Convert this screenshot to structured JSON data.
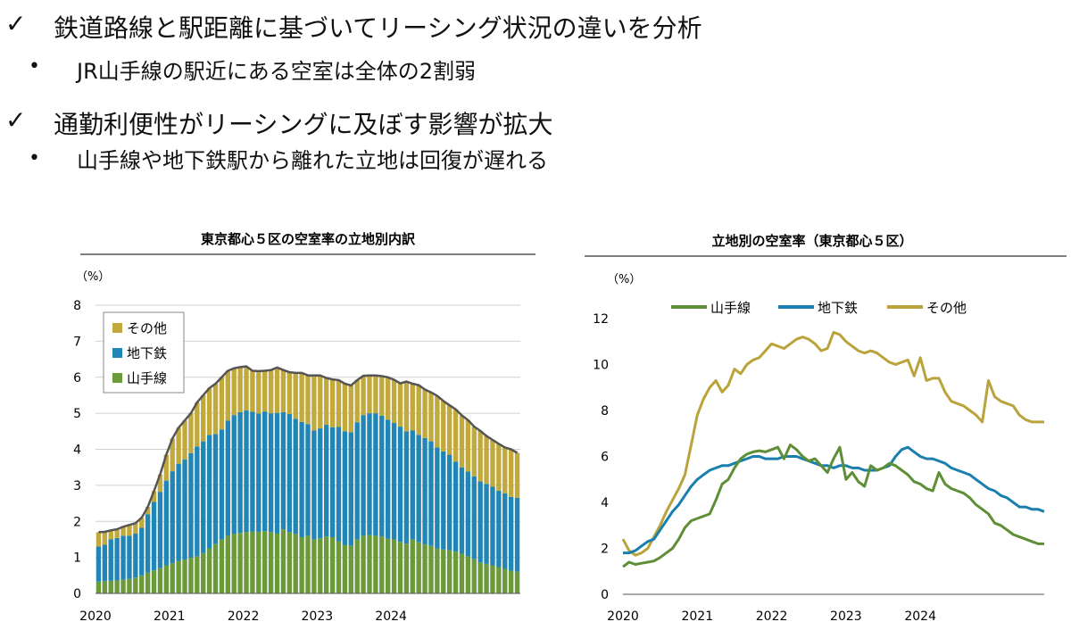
{
  "bullets": [
    {
      "mark": "✓",
      "text": "鉄道路線と駅距離に基づいてリーシング状況の違いを分析"
    },
    {
      "mark": "•",
      "text": "JR山手線の駅近にある空室は全体の2割弱"
    },
    {
      "mark": "✓",
      "text": "通勤利便性がリーシングに及ぼす影響が拡大"
    },
    {
      "mark": "•",
      "text": "山手線や地下鉄駅から離れた立地は回復が遅れる"
    }
  ],
  "chart_data": [
    {
      "type": "bar",
      "stacked": true,
      "title": "東京都心５区の空室率の立地別内訳",
      "ylabel": "（%）",
      "ylim": [
        0,
        8
      ],
      "yticks": [
        0,
        1,
        2,
        3,
        4,
        5,
        6,
        7,
        8
      ],
      "xticks": [
        "2020",
        "2021",
        "2022",
        "2023",
        "2024"
      ],
      "colors": {
        "yamanote": "#6a9a3a",
        "subway": "#2186b5",
        "other": "#c1a93c",
        "total": "#555555"
      },
      "series": [
        {
          "name": "山手線",
          "values": [
            0.33,
            0.34,
            0.35,
            0.36,
            0.38,
            0.4,
            0.44,
            0.5,
            0.58,
            0.64,
            0.7,
            0.78,
            0.84,
            0.9,
            0.94,
            0.99,
            1.03,
            1.12,
            1.25,
            1.37,
            1.5,
            1.6,
            1.65,
            1.68,
            1.7,
            1.72,
            1.71,
            1.73,
            1.7,
            1.66,
            1.78,
            1.7,
            1.65,
            1.56,
            1.6,
            1.5,
            1.53,
            1.58,
            1.56,
            1.44,
            1.35,
            1.32,
            1.5,
            1.6,
            1.62,
            1.6,
            1.58,
            1.52,
            1.5,
            1.43,
            1.38,
            1.5,
            1.42,
            1.36,
            1.32,
            1.25,
            1.22,
            1.2,
            1.16,
            1.1,
            1.03,
            0.95,
            0.86,
            0.82,
            0.78,
            0.73,
            0.68,
            0.63,
            0.6
          ]
        },
        {
          "name": "地下鉄",
          "values": [
            0.97,
            1.01,
            1.15,
            1.18,
            1.22,
            1.2,
            1.22,
            1.32,
            1.62,
            1.9,
            2.12,
            2.35,
            2.55,
            2.7,
            2.78,
            2.9,
            3.05,
            3.1,
            3.15,
            3.05,
            3.05,
            3.2,
            3.3,
            3.35,
            3.38,
            3.32,
            3.28,
            3.32,
            3.3,
            3.35,
            3.25,
            3.28,
            3.2,
            3.2,
            3.1,
            3.02,
            3.05,
            3.1,
            3.05,
            3.18,
            3.15,
            3.15,
            3.25,
            3.35,
            3.38,
            3.4,
            3.35,
            3.3,
            3.23,
            3.2,
            3.12,
            3.02,
            2.98,
            2.95,
            2.9,
            2.8,
            2.72,
            2.65,
            2.5,
            2.4,
            2.35,
            2.3,
            2.25,
            2.22,
            2.18,
            2.12,
            2.1,
            2.05,
            2.05
          ]
        },
        {
          "name": "その他",
          "values": [
            0.4,
            0.36,
            0.25,
            0.24,
            0.25,
            0.3,
            0.29,
            0.28,
            0.2,
            0.3,
            0.48,
            0.72,
            0.91,
            1.0,
            1.08,
            1.11,
            1.22,
            1.28,
            1.3,
            1.4,
            1.45,
            1.38,
            1.3,
            1.25,
            1.22,
            1.14,
            1.18,
            1.13,
            1.2,
            1.26,
            1.17,
            1.16,
            1.27,
            1.36,
            1.35,
            1.53,
            1.47,
            1.3,
            1.33,
            1.3,
            1.32,
            1.3,
            1.17,
            1.09,
            1.05,
            1.05,
            1.1,
            1.18,
            1.2,
            1.2,
            1.38,
            1.3,
            1.38,
            1.35,
            1.36,
            1.43,
            1.4,
            1.37,
            1.45,
            1.44,
            1.43,
            1.38,
            1.4,
            1.33,
            1.3,
            1.3,
            1.27,
            1.32,
            1.25
          ]
        }
      ],
      "legend": [
        "その他",
        "地下鉄",
        "山手線"
      ]
    },
    {
      "type": "line",
      "title": "立地別の空室率（東京都心５区）",
      "ylabel": "（%）",
      "ylim": [
        0,
        12
      ],
      "yticks": [
        0,
        2,
        4,
        6,
        8,
        10,
        12
      ],
      "xticks": [
        "2020",
        "2021",
        "2022",
        "2023",
        "2024"
      ],
      "colors": {
        "yamanote": "#5e8e35",
        "subway": "#1a7fae",
        "other": "#b9a33a"
      },
      "series": [
        {
          "name": "山手線",
          "values": [
            1.2,
            1.4,
            1.3,
            1.35,
            1.4,
            1.45,
            1.6,
            1.8,
            2.0,
            2.4,
            2.9,
            3.2,
            3.3,
            3.4,
            3.5,
            4.1,
            4.8,
            5.0,
            5.5,
            5.9,
            6.1,
            6.2,
            6.25,
            6.2,
            6.3,
            6.4,
            5.9,
            6.5,
            6.3,
            6.0,
            5.8,
            5.9,
            5.6,
            5.3,
            5.9,
            6.4,
            5.0,
            5.3,
            4.9,
            4.7,
            5.6,
            5.4,
            5.5,
            5.7,
            5.6,
            5.4,
            5.2,
            4.9,
            4.8,
            4.6,
            4.5,
            5.3,
            4.8,
            4.6,
            4.5,
            4.4,
            4.2,
            3.9,
            3.7,
            3.5,
            3.1,
            3.0,
            2.8,
            2.6,
            2.5,
            2.4,
            2.3,
            2.2,
            2.2
          ]
        },
        {
          "name": "地下鉄",
          "values": [
            1.8,
            1.8,
            1.9,
            2.1,
            2.3,
            2.4,
            2.8,
            3.2,
            3.6,
            3.9,
            4.3,
            4.7,
            5.0,
            5.2,
            5.4,
            5.5,
            5.6,
            5.6,
            5.7,
            5.8,
            5.9,
            6.0,
            6.0,
            5.9,
            5.9,
            5.9,
            6.0,
            6.0,
            6.0,
            5.9,
            5.8,
            5.7,
            5.6,
            5.6,
            5.5,
            5.6,
            5.6,
            5.5,
            5.5,
            5.4,
            5.4,
            5.4,
            5.5,
            5.6,
            6.0,
            6.3,
            6.4,
            6.2,
            6.0,
            5.9,
            5.9,
            5.8,
            5.7,
            5.5,
            5.4,
            5.3,
            5.2,
            5.0,
            4.8,
            4.6,
            4.5,
            4.3,
            4.2,
            4.0,
            3.8,
            3.8,
            3.7,
            3.7,
            3.6
          ]
        },
        {
          "name": "その他",
          "values": [
            2.4,
            1.9,
            1.7,
            1.8,
            2.0,
            2.5,
            3.0,
            3.6,
            4.1,
            4.6,
            5.2,
            6.5,
            7.8,
            8.5,
            9.0,
            9.3,
            8.8,
            9.1,
            9.8,
            9.6,
            10.0,
            10.2,
            10.3,
            10.6,
            10.9,
            10.8,
            10.7,
            10.9,
            11.1,
            11.2,
            11.1,
            10.9,
            10.6,
            10.7,
            11.4,
            11.3,
            11.0,
            10.8,
            10.6,
            10.5,
            10.6,
            10.5,
            10.3,
            10.1,
            10.0,
            10.1,
            10.2,
            9.5,
            10.3,
            9.3,
            9.4,
            9.4,
            8.8,
            8.4,
            8.3,
            8.2,
            8.0,
            7.8,
            7.5,
            9.3,
            8.6,
            8.4,
            8.3,
            8.2,
            7.8,
            7.6,
            7.5,
            7.5,
            7.5
          ]
        }
      ],
      "legend": [
        "山手線",
        "地下鉄",
        "その他"
      ]
    }
  ]
}
